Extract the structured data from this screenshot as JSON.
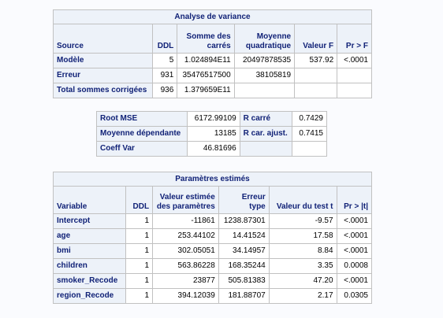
{
  "anova": {
    "title": "Analyse de variance",
    "headers": [
      "Source",
      "DDL",
      "Somme des\ncarrés",
      "Moyenne\nquadratique",
      "Valeur F",
      "Pr > F"
    ],
    "rows": [
      {
        "source": "Modèle",
        "ddl": "5",
        "ss": "1.024894E11",
        "ms": "20497878535",
        "f": "537.92",
        "p": "<.0001"
      },
      {
        "source": "Erreur",
        "ddl": "931",
        "ss": "35476517500",
        "ms": "38105819",
        "f": "",
        "p": ""
      },
      {
        "source": "Total sommes corrigées",
        "ddl": "936",
        "ss": "1.379659E11",
        "ms": "",
        "f": "",
        "p": ""
      }
    ]
  },
  "fit": {
    "rows": [
      {
        "label1": "Root MSE",
        "value1": "6172.99109",
        "label2": "R carré",
        "value2": "0.7429"
      },
      {
        "label1": "Moyenne dépendante",
        "value1": "13185",
        "label2": "R car. ajust.",
        "value2": "0.7415"
      },
      {
        "label1": "Coeff Var",
        "value1": "46.81696",
        "label2": "",
        "value2": ""
      }
    ]
  },
  "params": {
    "title": "Paramètres estimés",
    "headers": [
      "Variable",
      "DDL",
      "Valeur estimée\ndes paramètres",
      "Erreur\ntype",
      "Valeur du test t",
      "Pr > |t|"
    ],
    "rows": [
      {
        "variable": "Intercept",
        "ddl": "1",
        "estimate": "-11861",
        "se": "1238.87301",
        "t": "-9.57",
        "p": "<.0001"
      },
      {
        "variable": "age",
        "ddl": "1",
        "estimate": "253.44102",
        "se": "14.41524",
        "t": "17.58",
        "p": "<.0001"
      },
      {
        "variable": "bmi",
        "ddl": "1",
        "estimate": "302.05051",
        "se": "34.14957",
        "t": "8.84",
        "p": "<.0001"
      },
      {
        "variable": "children",
        "ddl": "1",
        "estimate": "563.86228",
        "se": "168.35244",
        "t": "3.35",
        "p": "0.0008"
      },
      {
        "variable": "smoker_Recode",
        "ddl": "1",
        "estimate": "23877",
        "se": "505.81383",
        "t": "47.20",
        "p": "<.0001"
      },
      {
        "variable": "region_Recode",
        "ddl": "1",
        "estimate": "394.12039",
        "se": "181.88707",
        "t": "2.17",
        "p": "0.0305"
      }
    ]
  }
}
